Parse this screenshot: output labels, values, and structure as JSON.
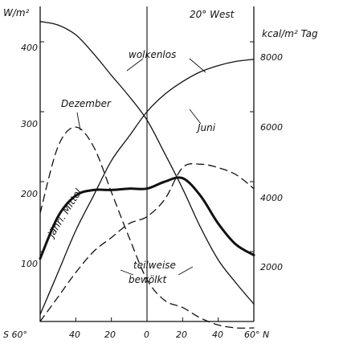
{
  "chart_data": {
    "type": "line",
    "title": "20° West",
    "ylabel_left": "W/m²",
    "ylabel_right": "kcal/m² Tag",
    "x_ticks": [
      "S 60°",
      "40",
      "20",
      "0",
      "20",
      "40",
      "60° N"
    ],
    "x_tick_values": [
      -60,
      -40,
      -20,
      0,
      20,
      40,
      60
    ],
    "xlim": [
      -60,
      60
    ],
    "ylim_left": [
      0,
      450
    ],
    "y_ticks_left": [
      100,
      200,
      300,
      400
    ],
    "y_ticks_right": [
      2000,
      4000,
      6000,
      8000
    ],
    "grid": false,
    "annotations": {
      "wolkenlos": "wolkenlos",
      "dezember": "Dezember",
      "juni": "Juni",
      "mittel": "jährl. Mittel",
      "teilweise": "teilweise",
      "bewoelkt": "bewölkt"
    },
    "series": [
      {
        "key": "dez_clear",
        "style": "solid",
        "width": 1.3,
        "x": [
          -60,
          -50,
          -40,
          -30,
          -20,
          -10,
          0,
          10,
          20,
          30,
          40,
          50,
          60
        ],
        "y": [
          429,
          424,
          410,
          383,
          352,
          322,
          288,
          240,
          190,
          135,
          88,
          55,
          25
        ]
      },
      {
        "key": "jun_clear",
        "style": "solid",
        "width": 1.3,
        "x": [
          -60,
          -50,
          -40,
          -30,
          -20,
          -10,
          0,
          10,
          20,
          30,
          40,
          50,
          60
        ],
        "y": [
          10,
          70,
          130,
          180,
          230,
          265,
          300,
          325,
          343,
          357,
          366,
          372,
          375
        ]
      },
      {
        "key": "dez_cloudy",
        "style": "dashed",
        "width": 1.3,
        "x": [
          -60,
          -50,
          -40,
          -30,
          -20,
          -10,
          0,
          10,
          20,
          30,
          40,
          50,
          60
        ],
        "y": [
          155,
          250,
          278,
          250,
          185,
          120,
          60,
          30,
          20,
          5,
          -5,
          -10,
          -15
        ]
      },
      {
        "key": "jun_cloudy",
        "style": "dashed",
        "width": 1.3,
        "x": [
          -60,
          -50,
          -40,
          -30,
          -20,
          -10,
          0,
          10,
          20,
          30,
          40,
          50,
          60
        ],
        "y": [
          0,
          35,
          70,
          100,
          120,
          140,
          150,
          175,
          220,
          225,
          220,
          210,
          190
        ]
      },
      {
        "key": "annual_mean",
        "style": "solid",
        "width": 3,
        "x": [
          -60,
          -50,
          -40,
          -30,
          -20,
          -10,
          0,
          10,
          20,
          30,
          40,
          50,
          60
        ],
        "y": [
          90,
          150,
          180,
          188,
          188,
          190,
          190,
          200,
          205,
          180,
          140,
          110,
          95
        ]
      }
    ]
  }
}
